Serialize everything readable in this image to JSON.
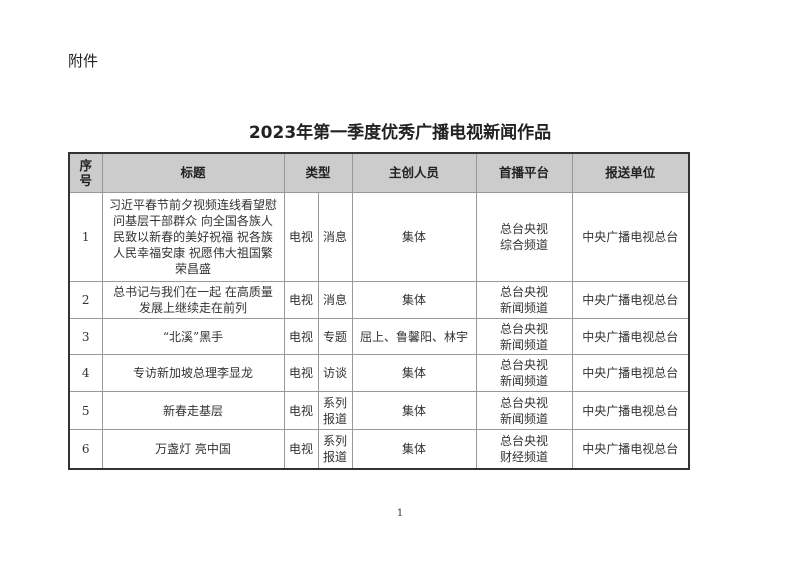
{
  "attachment_label": "附件",
  "title": "2023年第一季度优秀广播电视新闻作品",
  "headers": {
    "no": "序号",
    "title": "标题",
    "type": "类型",
    "creators": "主创人员",
    "platform": "首播平台",
    "unit": "报送单位"
  },
  "rows": [
    {
      "no": "1",
      "title": "习近平春节前夕视频连线看望慰问基层干部群众 向全国各族人民致以新春的美好祝福 祝各族人民幸福安康 祝愿伟大祖国繁荣昌盛",
      "medium": "电视",
      "genre": "消息",
      "creators": "集体",
      "platform": "总台央视综合频道",
      "unit": "中央广播电视总台"
    },
    {
      "no": "2",
      "title": "总书记与我们在一起 在高质量发展上继续走在前列",
      "medium": "电视",
      "genre": "消息",
      "creators": "集体",
      "platform": "总台央视新闻频道",
      "unit": "中央广播电视总台"
    },
    {
      "no": "3",
      "title": "“北溪”黑手",
      "medium": "电视",
      "genre": "专题",
      "creators": "屈上、鲁馨阳、林宇",
      "platform": "总台央视新闻频道",
      "unit": "中央广播电视总台"
    },
    {
      "no": "4",
      "title": "专访新加坡总理李显龙",
      "medium": "电视",
      "genre": "访谈",
      "creators": "集体",
      "platform": "总台央视新闻频道",
      "unit": "中央广播电视总台"
    },
    {
      "no": "5",
      "title": "新春走基层",
      "medium": "电视",
      "genre": "系列报道",
      "creators": "集体",
      "platform": "总台央视新闻频道",
      "unit": "中央广播电视总台"
    },
    {
      "no": "6",
      "title": "万盏灯 亮中国",
      "medium": "电视",
      "genre": "系列报道",
      "creators": "集体",
      "platform": "总台央视财经频道",
      "unit": "中央广播电视总台"
    }
  ],
  "page_number": "1"
}
